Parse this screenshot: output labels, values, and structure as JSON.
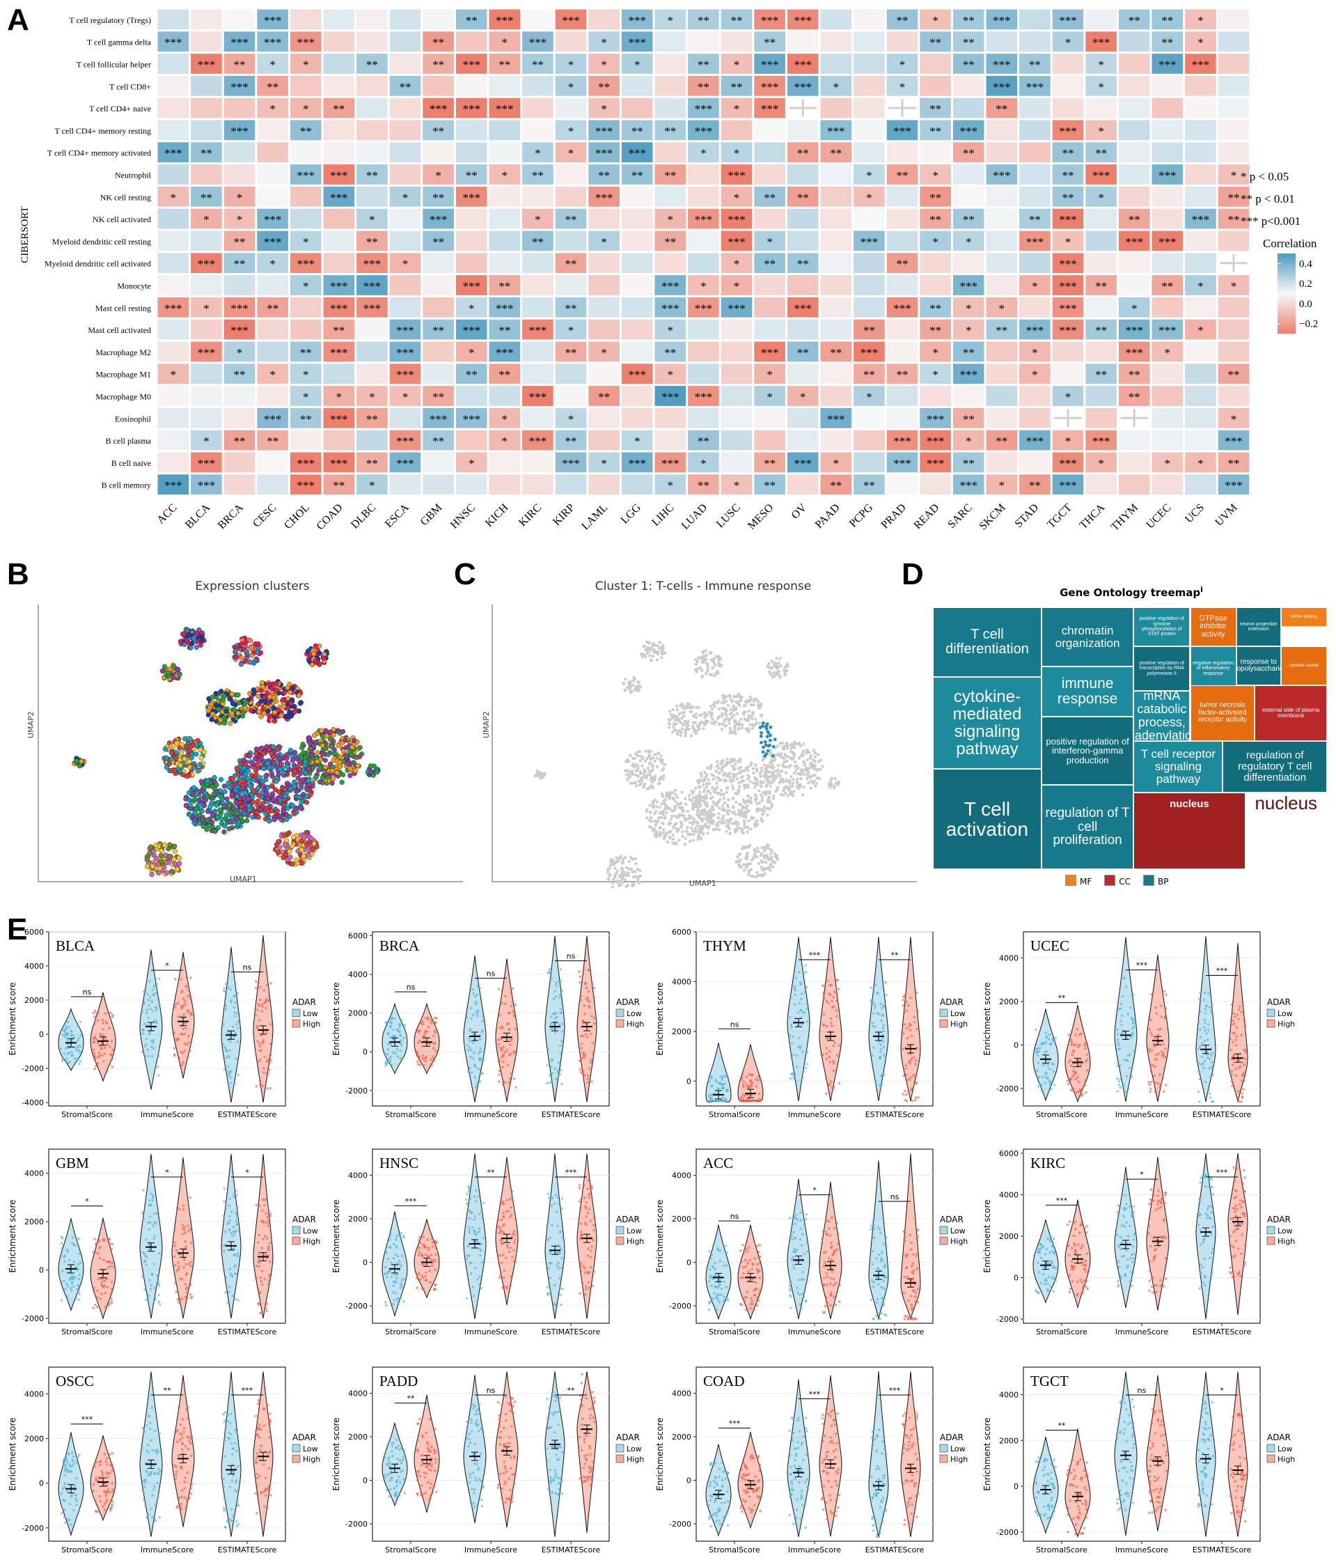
{
  "panels": {
    "A": "A",
    "B": "B",
    "C": "C",
    "D": "D",
    "E": "E"
  },
  "heatmap": {
    "y_axis_title": "CIBERSORT",
    "cancers": [
      "ACC",
      "BLCA",
      "BRCA",
      "CESC",
      "CHOL",
      "COAD",
      "DLBC",
      "ESCA",
      "GBM",
      "HNSC",
      "KICH",
      "KIRC",
      "KIRP",
      "LAML",
      "LGG",
      "LIHC",
      "LUAD",
      "LUSC",
      "MESO",
      "OV",
      "PAAD",
      "PCPG",
      "PRAD",
      "READ",
      "SARC",
      "SKCM",
      "STAD",
      "TGCT",
      "THCA",
      "THYM",
      "UCEC",
      "UCS",
      "UVM"
    ],
    "cells": [
      "T cell regulatory (Tregs)",
      "T cell gamma delta",
      "T cell follicular helper",
      "T cell CD8+",
      "T cell CD4+ naive",
      "T cell CD4+ memory resting",
      "T cell CD4+ memory activated",
      "Neutrophil",
      "NK cell resting",
      "NK cell activated",
      "Myeloid dendritic cell resting",
      "Myeloid dendritic cell activated",
      "Monocyte",
      "Mast cell resting",
      "Mast cell activated",
      "Macrophage M2",
      "Macrophage M1",
      "Macrophage M0",
      "Eosinophil",
      "B cell plasma",
      "B cell naive",
      "B cell memory"
    ],
    "significance_legend": [
      "* p < 0.05",
      "** p < 0.01",
      "*** p<0.001"
    ],
    "colorbar": {
      "title": "Correlation",
      "ticks": [
        0.4,
        0.2,
        0.0,
        -0.2
      ],
      "tick_labels": [
        "0.4",
        "0.2",
        "0.0",
        "−0.2"
      ],
      "colors": {
        "positive": "#4d9bbf",
        "zero": "#f7f7f7",
        "negative": "#ec7f6d"
      }
    },
    "missing": [
      [
        4,
        19
      ],
      [
        4,
        22
      ],
      [
        11,
        32
      ],
      [
        18,
        27
      ],
      [
        18,
        29
      ]
    ]
  },
  "umap_b": {
    "title": "Expression clusters",
    "xlabel": "UMAP1",
    "ylabel": "UMAP2"
  },
  "umap_c": {
    "title": "Cluster 1: T-cells - Immune response",
    "xlabel": "UMAP1",
    "ylabel": "UMAP2"
  },
  "treemap": {
    "title": "Gene Ontology treemap",
    "title_mark": "i",
    "legend": [
      {
        "label": "MF",
        "color": "#f07e1a"
      },
      {
        "label": "CC",
        "color": "#bb2a2a"
      },
      {
        "label": "BP",
        "color": "#177a8c"
      }
    ],
    "tiles": [
      {
        "label": "T cell differentiation",
        "cat": "BP"
      },
      {
        "label": "cytokine-mediated signaling pathway",
        "cat": "BP"
      },
      {
        "label": "T cell activation",
        "cat": "BP"
      },
      {
        "label": "chromatin organization",
        "cat": "BP"
      },
      {
        "label": "immune response",
        "cat": "BP"
      },
      {
        "label": "positive regulation of interferon-gamma production",
        "cat": "BP"
      },
      {
        "label": "regulation of T cell proliferation",
        "cat": "BP"
      },
      {
        "label": "positive regulation of tyrosine phosphorylation of STAT protein",
        "cat": "BP"
      },
      {
        "label": "positive regulation of transcription by RNA polymerase II",
        "cat": "BP"
      },
      {
        "label": "GTPase inhibitor activity",
        "cat": "MF"
      },
      {
        "label": "negative regulation of inflammatory response",
        "cat": "BP"
      },
      {
        "label": "neuron projection extension",
        "cat": "BP"
      },
      {
        "label": "mRNA binding",
        "cat": "MF"
      },
      {
        "label": "chemokine receptor activity",
        "cat": "MF"
      },
      {
        "label": "response to lipopolysaccharide",
        "cat": "BP"
      },
      {
        "label": "cytokine activity",
        "cat": "MF"
      },
      {
        "label": "nuclear-transcribed mRNA catabolic process, deadenylation-dependent decay",
        "cat": "BP"
      },
      {
        "label": "tumor necrosis factor-activated receptor activity",
        "cat": "MF"
      },
      {
        "label": "external side of plasma membrane",
        "cat": "CC"
      },
      {
        "label": "T cell receptor signaling pathway",
        "cat": "BP"
      },
      {
        "label": "regulation of regulatory T cell differentiation",
        "cat": "BP"
      },
      {
        "label": "nucleus",
        "cat": "CC"
      },
      {
        "label": "nucleus",
        "cat": "CC"
      }
    ]
  },
  "violins": {
    "x_categories": [
      "StromalScore",
      "ImmuneScore",
      "ESTIMATEScore"
    ],
    "ylabel": "Enrichment score",
    "legend_title": "ADAR",
    "legend_items": [
      {
        "label": "Low",
        "color": "#4fb3d4"
      },
      {
        "label": "High",
        "color": "#f05a3c"
      }
    ],
    "panels": [
      {
        "name": "BLCA",
        "ylim": [
          -4200,
          6000
        ],
        "ticks": [
          -4000,
          -2000,
          0,
          2000,
          4000,
          6000
        ],
        "low_median": [
          -500,
          450,
          -50
        ],
        "high_median": [
          -400,
          750,
          250
        ],
        "sig": [
          "ns",
          "*",
          "ns"
        ]
      },
      {
        "name": "BRCA",
        "ylim": [
          -2800,
          6200
        ],
        "ticks": [
          -2000,
          0,
          2000,
          4000,
          6000
        ],
        "low_median": [
          500,
          800,
          1300
        ],
        "high_median": [
          500,
          750,
          1300
        ],
        "sig": [
          "ns",
          "ns",
          "ns"
        ]
      },
      {
        "name": "THYM",
        "ylim": [
          -1000,
          6000
        ],
        "ticks": [
          0,
          2000,
          4000,
          6000
        ],
        "low_median": [
          -550,
          2350,
          1800
        ],
        "high_median": [
          -500,
          1800,
          1300
        ],
        "sig": [
          "ns",
          "***",
          "**"
        ]
      },
      {
        "name": "UCEC",
        "ylim": [
          -2800,
          5200
        ],
        "ticks": [
          -2000,
          0,
          2000,
          4000
        ],
        "low_median": [
          -650,
          450,
          -200
        ],
        "high_median": [
          -800,
          200,
          -600
        ],
        "sig": [
          "**",
          "***",
          "***"
        ]
      },
      {
        "name": "GBM",
        "ylim": [
          -2200,
          5000
        ],
        "ticks": [
          -2000,
          0,
          2000,
          4000
        ],
        "low_median": [
          50,
          950,
          1000
        ],
        "high_median": [
          -150,
          700,
          550
        ],
        "sig": [
          "*",
          "*",
          "*"
        ]
      },
      {
        "name": "HNSC",
        "ylim": [
          -2800,
          5200
        ],
        "ticks": [
          -2000,
          0,
          2000,
          4000
        ],
        "low_median": [
          -300,
          850,
          550
        ],
        "high_median": [
          0,
          1100,
          1100
        ],
        "sig": [
          "***",
          "**",
          "***"
        ]
      },
      {
        "name": "ACC",
        "ylim": [
          -2800,
          5200
        ],
        "ticks": [
          -2000,
          0,
          2000,
          4000
        ],
        "low_median": [
          -700,
          100,
          -600
        ],
        "high_median": [
          -700,
          -150,
          -950
        ],
        "sig": [
          "ns",
          "*",
          "ns"
        ]
      },
      {
        "name": "KIRC",
        "ylim": [
          -2200,
          6200
        ],
        "ticks": [
          -2000,
          0,
          2000,
          4000,
          6000
        ],
        "low_median": [
          600,
          1600,
          2200
        ],
        "high_median": [
          900,
          1750,
          2700
        ],
        "sig": [
          "***",
          "*",
          "***"
        ]
      },
      {
        "name": "OSCC",
        "ylim": [
          -2600,
          5200
        ],
        "ticks": [
          -2000,
          0,
          2000,
          4000
        ],
        "low_median": [
          -250,
          850,
          600
        ],
        "high_median": [
          50,
          1100,
          1200
        ],
        "sig": [
          "***",
          "**",
          "***"
        ]
      },
      {
        "name": "PADD",
        "ylim": [
          -2800,
          5200
        ],
        "ticks": [
          -2000,
          0,
          2000,
          4000
        ],
        "low_median": [
          550,
          1100,
          1650
        ],
        "high_median": [
          950,
          1350,
          2350
        ],
        "sig": [
          "**",
          "ns",
          "**"
        ]
      },
      {
        "name": "COAD",
        "ylim": [
          -2800,
          5200
        ],
        "ticks": [
          -2000,
          0,
          2000,
          4000
        ],
        "low_median": [
          -650,
          350,
          -250
        ],
        "high_median": [
          -200,
          750,
          550
        ],
        "sig": [
          "***",
          "***",
          "***"
        ]
      },
      {
        "name": "TGCT",
        "ylim": [
          -2400,
          5200
        ],
        "ticks": [
          -2000,
          0,
          2000,
          4000
        ],
        "low_median": [
          -150,
          1350,
          1200
        ],
        "high_median": [
          -450,
          1100,
          700
        ],
        "sig": [
          "**",
          "ns",
          "*"
        ]
      }
    ]
  }
}
